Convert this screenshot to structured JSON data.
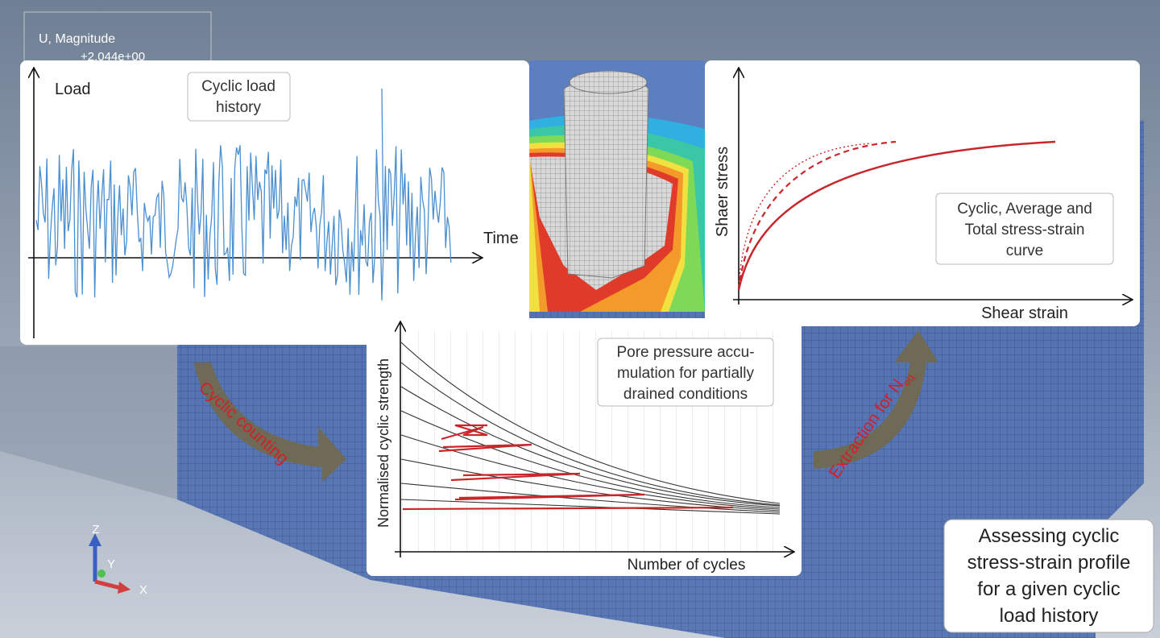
{
  "legend": {
    "title": "U, Magnitude",
    "value": "+2.044e+00"
  },
  "load_panel": {
    "y_label": "Load",
    "x_label": "Time",
    "note": [
      "Cyclic load",
      "history"
    ]
  },
  "stress_panel": {
    "y_label": "Shaer stress",
    "x_label": "Shear strain",
    "note": [
      "Cyclic, Average and",
      "Total stress-strain",
      "curve"
    ]
  },
  "cycles_panel": {
    "y_label": "Normalised cyclic strength",
    "x_label": "Number of cycles",
    "note": [
      "Pore pressure accu-",
      "mulation for partially",
      "drained conditions"
    ]
  },
  "arrows": {
    "left": "Cyclic counting",
    "right": "Extraction for N",
    "right_subscript": "eq"
  },
  "summary": [
    "Assessing cyclic",
    "stress-strain profile",
    "for a given cyclic",
    "load history"
  ],
  "triad": {
    "z": "Z",
    "y": "Y",
    "x": "X"
  }
}
